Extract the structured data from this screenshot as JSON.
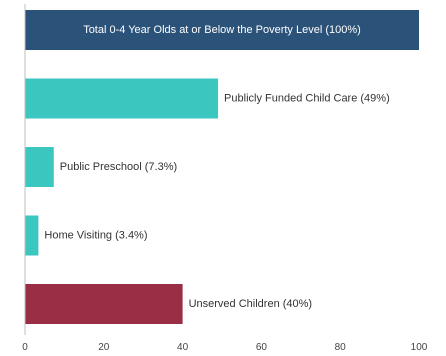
{
  "chart_data": {
    "type": "bar",
    "orientation": "horizontal",
    "categories": [
      "Total 0-4 Year Olds at or Below the Poverty Level (100%)",
      "Publicly Funded Child Care (49%)",
      "Public Preschool (7.3%)",
      "Home Visiting (3.4%)",
      "Unserved Children (40%)"
    ],
    "values": [
      100,
      49,
      7.3,
      3.4,
      40
    ],
    "colors": [
      "#2b5279",
      "#3bc6c0",
      "#3bc6c0",
      "#3bc6c0",
      "#9a2e45"
    ],
    "label_positions": [
      "inside",
      "outside",
      "outside",
      "outside",
      "outside"
    ],
    "xlim": [
      0,
      100
    ],
    "xticks": [
      0,
      20,
      40,
      60,
      80,
      100
    ],
    "title": "",
    "xlabel": "",
    "ylabel": "",
    "grid": false,
    "legend": "none"
  }
}
